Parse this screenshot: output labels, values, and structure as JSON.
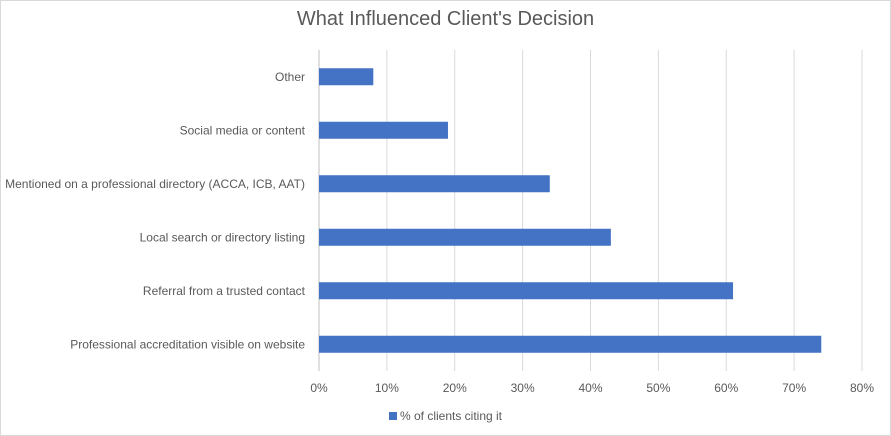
{
  "chart_data": {
    "type": "bar",
    "orientation": "horizontal",
    "title": "What Influenced Client's Decision",
    "categories": [
      "Other",
      "Social media or content",
      "Mentioned on a professional directory (ACCA, ICB, AAT)",
      "Local search or directory listing",
      "Referral from a trusted contact",
      "Professional accreditation visible on website"
    ],
    "series": [
      {
        "name": "% of clients citing it",
        "values": [
          8,
          19,
          34,
          43,
          61,
          74
        ],
        "color": "#4472c4"
      }
    ],
    "xlim": [
      0,
      80
    ],
    "xticks": [
      "0%",
      "10%",
      "20%",
      "30%",
      "40%",
      "50%",
      "60%",
      "70%",
      "80%"
    ],
    "xunit": "%",
    "grid": true,
    "legend_position": "bottom"
  }
}
